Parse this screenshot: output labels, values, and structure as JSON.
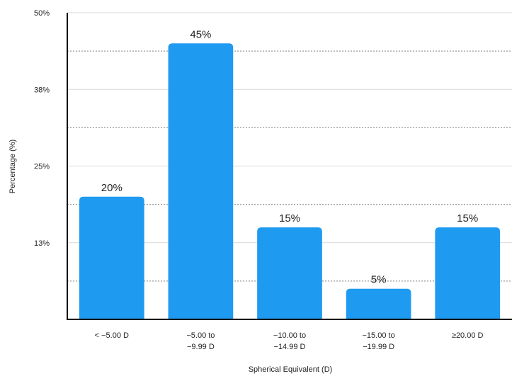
{
  "chart_data": {
    "type": "bar",
    "title": "",
    "xlabel": "Spherical Equivalent (D)",
    "ylabel": "Percentage (%)",
    "ylim": [
      0,
      50
    ],
    "yticks": [
      {
        "value": 12.5,
        "label": "13%"
      },
      {
        "value": 25,
        "label": "25%"
      },
      {
        "value": 37.5,
        "label": "38%"
      },
      {
        "value": 50,
        "label": "50%"
      }
    ],
    "grid": true,
    "categories": [
      [
        "< −5.00 D"
      ],
      [
        "−5.00 to",
        "−9.99 D"
      ],
      [
        "−10.00 to",
        "−14.99 D"
      ],
      [
        "−15.00 to",
        "−19.99 D"
      ],
      [
        "≥20.00 D"
      ]
    ],
    "values": [
      20,
      45,
      15,
      5,
      15
    ],
    "data_labels": [
      "20%",
      "45%",
      "15%",
      "5%",
      "15%"
    ],
    "bar_color": "#1e9bf0"
  }
}
